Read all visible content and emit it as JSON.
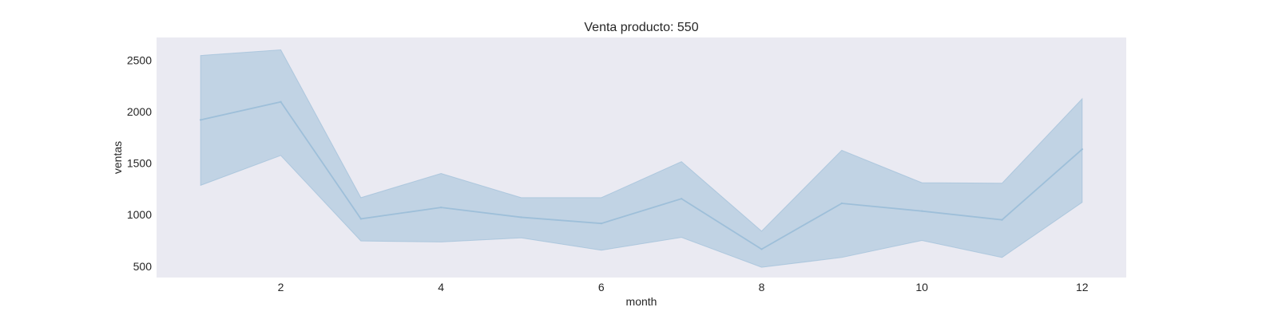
{
  "chart_data": {
    "type": "line",
    "title": "Venta producto: 550",
    "xlabel": "month",
    "ylabel": "ventas",
    "xlim": [
      0.45,
      12.55
    ],
    "ylim": [
      390,
      2720
    ],
    "x_ticks": [
      2,
      4,
      6,
      8,
      10,
      12
    ],
    "y_ticks": [
      500,
      1000,
      1500,
      2000,
      2500
    ],
    "grid": false,
    "series": [
      {
        "x": [
          1,
          2,
          3,
          4,
          5,
          6,
          7,
          8,
          9,
          10,
          11,
          12
        ],
        "values": [
          1920,
          2095,
          960,
          1070,
          975,
          915,
          1155,
          665,
          1110,
          1035,
          950,
          1635
        ],
        "ci_lower": [
          1285,
          1575,
          745,
          735,
          775,
          655,
          780,
          490,
          585,
          750,
          585,
          1120
        ],
        "ci_upper": [
          2545,
          2600,
          1165,
          1400,
          1165,
          1165,
          1515,
          840,
          1625,
          1310,
          1305,
          2125
        ]
      }
    ],
    "colors": {
      "plot_background": "#eaeaf2",
      "line": "#9ebfd9",
      "band": "#9ebfd9"
    }
  }
}
